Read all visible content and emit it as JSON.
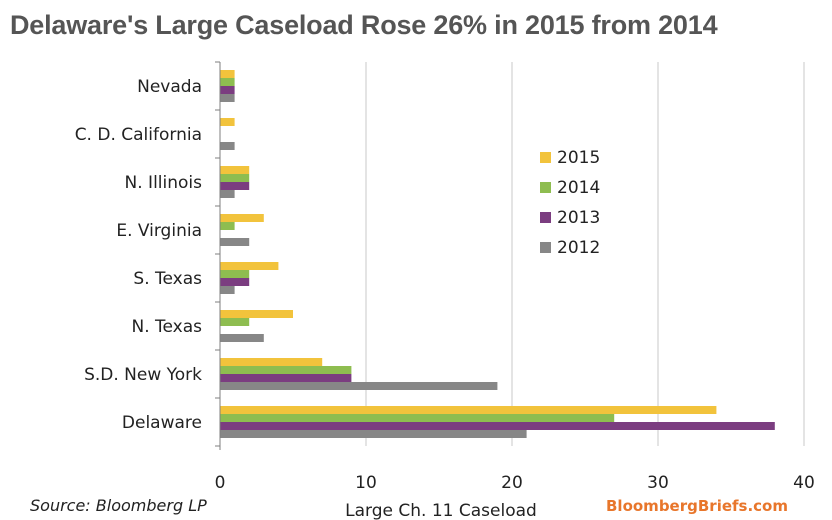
{
  "title": "Delaware's Large Caseload Rose 26% in 2015 from 2014",
  "source": "Source: Bloomberg LP",
  "brand": "BloombergBriefs.com",
  "chart_data": {
    "type": "bar",
    "orientation": "horizontal",
    "xlabel": "Large Ch. 11 Caseload",
    "xlim": [
      0,
      40
    ],
    "xticks": [
      0,
      10,
      20,
      30,
      40
    ],
    "grid": "vertical",
    "legend_position": "right",
    "categories": [
      "Nevada",
      "C. D. California",
      "N. Illinois",
      "E. Virginia",
      "S. Texas",
      "N. Texas",
      "S.D.  New York",
      "Delaware"
    ],
    "series": [
      {
        "name": "2015",
        "color": "#f2c33c",
        "values": [
          1,
          1,
          2,
          3,
          4,
          5,
          7,
          34
        ]
      },
      {
        "name": "2014",
        "color": "#8ebd50",
        "values": [
          1,
          0,
          2,
          1,
          2,
          2,
          9,
          27
        ]
      },
      {
        "name": "2013",
        "color": "#7b3d80",
        "values": [
          1,
          0,
          2,
          0,
          2,
          0,
          9,
          38
        ]
      },
      {
        "name": "2012",
        "color": "#878787",
        "values": [
          1,
          1,
          1,
          2,
          1,
          3,
          19,
          21
        ]
      }
    ]
  }
}
